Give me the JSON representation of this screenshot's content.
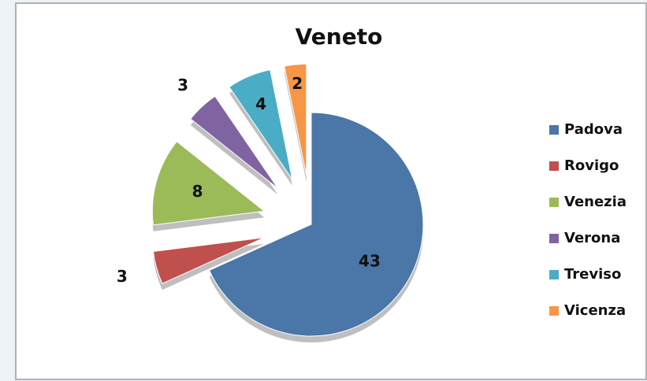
{
  "chart_data": {
    "type": "pie",
    "title": "Veneto",
    "categories": [
      "Padova",
      "Rovigo",
      "Venezia",
      "Verona",
      "Treviso",
      "Vicenza"
    ],
    "values": [
      43,
      3,
      8,
      3,
      4,
      2
    ],
    "colors": [
      "#4a76a8",
      "#c0504d",
      "#9bbb59",
      "#8064a2",
      "#4bacc6",
      "#f79646"
    ],
    "legend": "right"
  }
}
